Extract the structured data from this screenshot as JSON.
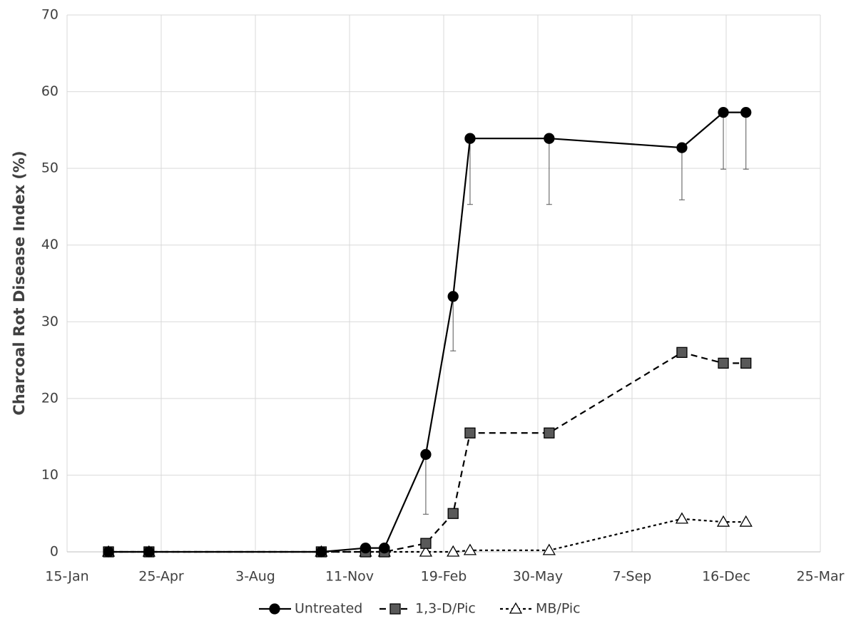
{
  "chart_data": {
    "type": "line",
    "y_label": "Charcoal Rot Disease Index (%)",
    "x": [
      44,
      87,
      270,
      317,
      337,
      381,
      410,
      428,
      512,
      653,
      697,
      721
    ],
    "xlim": [
      0,
      800
    ],
    "xticks": [
      {
        "value": 0,
        "label": "15-Jan"
      },
      {
        "value": 100,
        "label": "25-Apr"
      },
      {
        "value": 200,
        "label": "3-Aug"
      },
      {
        "value": 300,
        "label": "11-Nov"
      },
      {
        "value": 400,
        "label": "19-Feb"
      },
      {
        "value": 500,
        "label": "30-May"
      },
      {
        "value": 600,
        "label": "7-Sep"
      },
      {
        "value": 700,
        "label": "16-Dec"
      },
      {
        "value": 800,
        "label": "25-Mar"
      }
    ],
    "ylim": [
      0,
      70
    ],
    "yticks": [
      0,
      10,
      20,
      30,
      40,
      50,
      60,
      70
    ],
    "grid": true,
    "legend": "bottom",
    "series": [
      {
        "name": "Untreated",
        "color": "#000000",
        "marker": "circle",
        "line_style": "solid",
        "values": [
          0,
          0,
          0,
          0.5,
          0.5,
          12.7,
          33.3,
          53.9,
          53.9,
          52.7,
          57.3,
          57.3
        ],
        "errors": [
          null,
          null,
          null,
          null,
          null,
          7.8,
          7.1,
          8.6,
          8.6,
          6.8,
          7.4,
          7.4
        ]
      },
      {
        "name": "1,3-D/Pic",
        "color": "#595959",
        "marker": "square",
        "line_style": "dashed",
        "values": [
          0,
          0,
          0,
          0,
          0,
          1.1,
          5.0,
          15.5,
          15.5,
          26.0,
          24.6,
          24.6
        ]
      },
      {
        "name": "MB/Pic",
        "color": "#ffffff",
        "marker": "triangle",
        "line_style": "dotted",
        "values": [
          0,
          0,
          0,
          0,
          0,
          0,
          0,
          0.2,
          0.2,
          4.3,
          3.9,
          3.9
        ]
      }
    ]
  }
}
